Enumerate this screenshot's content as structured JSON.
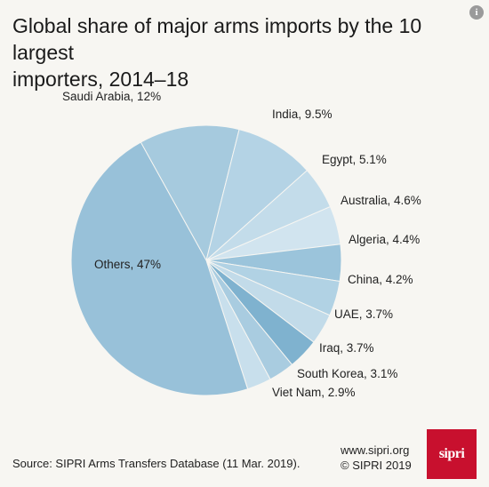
{
  "title_line1": "Global share of major arms imports by the 10 largest",
  "title_line2": "importers, 2014–18",
  "info_icon": "info-icon",
  "chart_data": {
    "type": "pie",
    "title": "Global share of major arms imports by the 10 largest importers, 2014–18",
    "slices": [
      {
        "label": "Saudi Arabia, 12%",
        "name": "Saudi Arabia",
        "value": 12,
        "color": "#a6cade"
      },
      {
        "label": "India, 9.5%",
        "name": "India",
        "value": 9.5,
        "color": "#b4d3e5"
      },
      {
        "label": "Egypt, 5.1%",
        "name": "Egypt",
        "value": 5.1,
        "color": "#c3dcea"
      },
      {
        "label": "Australia, 4.6%",
        "name": "Australia",
        "value": 4.6,
        "color": "#d1e4ef"
      },
      {
        "label": "Algeria, 4.4%",
        "name": "Algeria",
        "value": 4.4,
        "color": "#9bc4db"
      },
      {
        "label": "China, 4.2%",
        "name": "China",
        "value": 4.2,
        "color": "#b1d2e4"
      },
      {
        "label": "UAE, 3.7%",
        "name": "UAE",
        "value": 3.7,
        "color": "#c2dbe9"
      },
      {
        "label": "Iraq, 3.7%",
        "name": "Iraq",
        "value": 3.7,
        "color": "#7fb2cf"
      },
      {
        "label": "South Korea, 3.1%",
        "name": "South Korea",
        "value": 3.1,
        "color": "#a9cce0"
      },
      {
        "label": "Viet Nam, 2.9%",
        "name": "Viet Nam",
        "value": 2.9,
        "color": "#c8dfec"
      },
      {
        "label": "Others, 47%",
        "name": "Others",
        "value": 47,
        "color": "#98c1d9"
      }
    ]
  },
  "footer": {
    "source": "Source: SIPRI Arms Transfers Database (11 Mar. 2019).",
    "site": "www.sipri.org",
    "copyright": "© SIPRI 2019",
    "logo_text": "sipri"
  }
}
